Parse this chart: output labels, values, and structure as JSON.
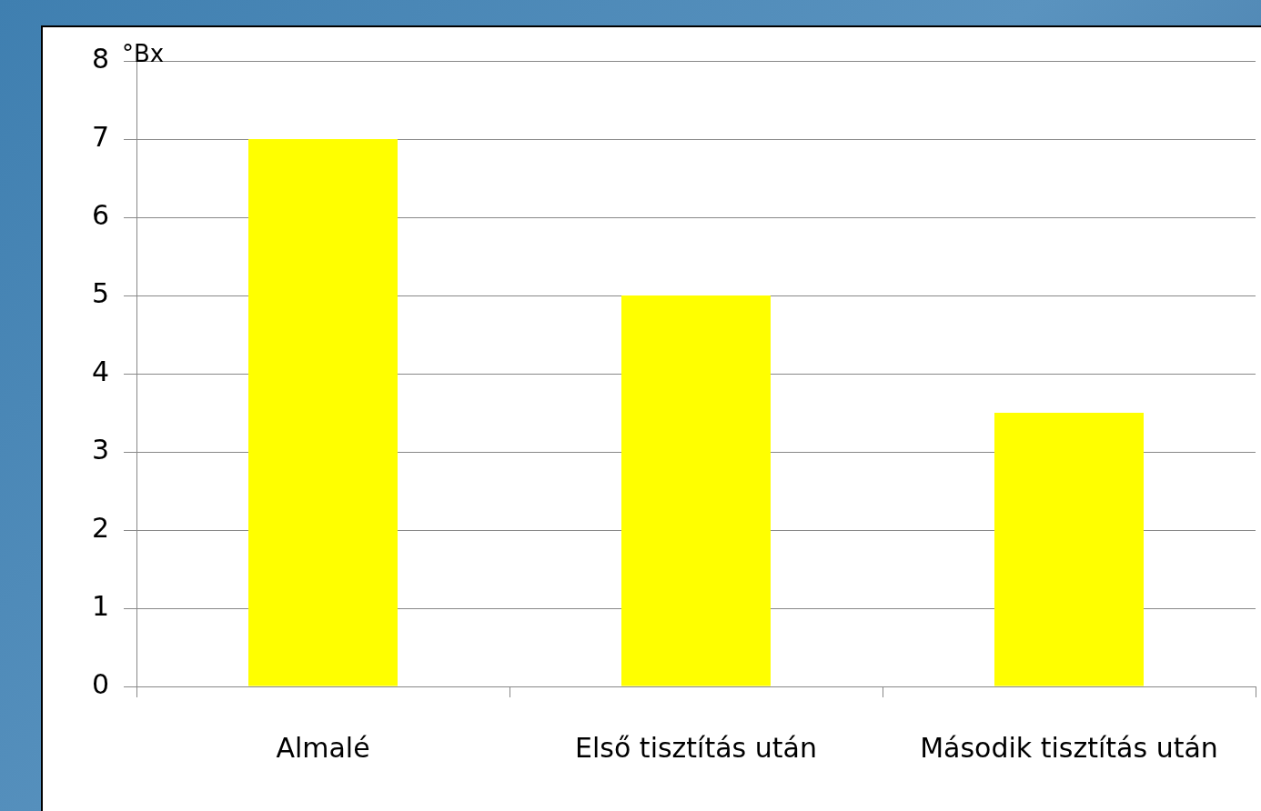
{
  "chart_data": {
    "type": "bar",
    "ylabel": "°Bx",
    "categories": [
      "Almalé",
      "Első tisztítás után",
      "Második tisztítás után"
    ],
    "values": [
      7,
      5,
      3.5
    ],
    "color": "#ffff00",
    "ylim": [
      0,
      8
    ],
    "yticks": [
      0,
      1,
      2,
      3,
      4,
      5,
      6,
      7,
      8
    ],
    "grid": "y",
    "legend": false
  }
}
